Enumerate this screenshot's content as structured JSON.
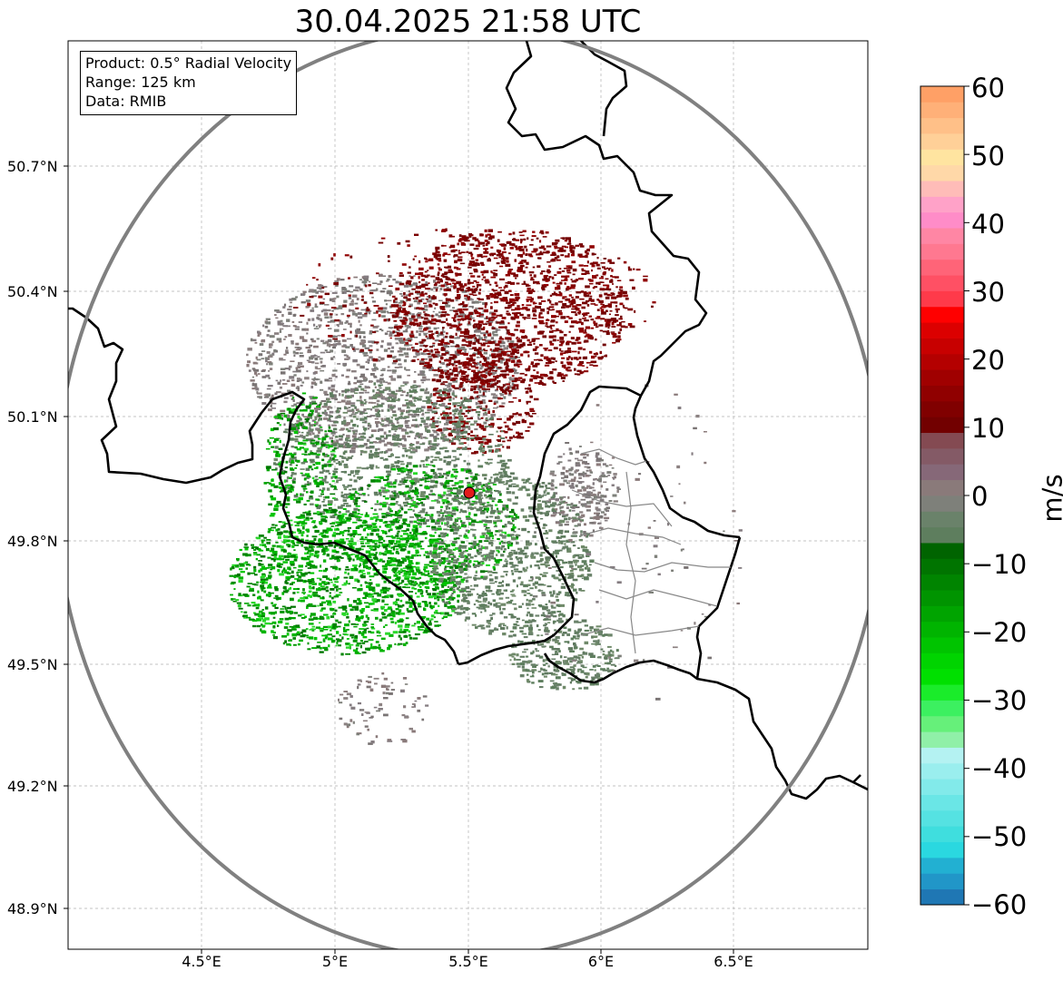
{
  "title": "30.04.2025 21:58 UTC",
  "info_box": {
    "product": "Product: 0.5° Radial Velocity",
    "range": "Range: 125 km",
    "data": "Data: RMIB"
  },
  "map": {
    "lat_labels": [
      "50.7°N",
      "50.4°N",
      "50.1°N",
      "49.8°N",
      "49.5°N",
      "49.2°N",
      "48.9°N"
    ],
    "lon_labels": [
      "4.5°E",
      "5°E",
      "5.5°E",
      "6°E",
      "6.5°E"
    ],
    "radar_site_color": "#e31a1c",
    "range_ring_color": "#808080",
    "border_color": "#000000"
  },
  "colorbar": {
    "unit": "m/s",
    "min": -60,
    "max": 60,
    "tick_labels": [
      "60",
      "50",
      "40",
      "30",
      "20",
      "10",
      "0",
      "−10",
      "−20",
      "−30",
      "−40",
      "−50",
      "−60"
    ],
    "colors_bottom_to_top": [
      "#1f77b4",
      "#2196c8",
      "#22b0d2",
      "#2ad8e0",
      "#3fdede",
      "#55e2e2",
      "#6ae6e6",
      "#82eaea",
      "#9aeeee",
      "#b4f2f2",
      "#90f0a8",
      "#66f07a",
      "#3cf060",
      "#1aec2a",
      "#00e000",
      "#00d400",
      "#00c400",
      "#00b400",
      "#00a400",
      "#009400",
      "#008400",
      "#007400",
      "#006400",
      "#5e7e5e",
      "#6a826a",
      "#7e807a",
      "#8a7a7a",
      "#866878",
      "#845a66",
      "#844a52",
      "#720000",
      "#800000",
      "#900000",
      "#a00000",
      "#b40000",
      "#c80000",
      "#dc0000",
      "#ff0000",
      "#ff3a4a",
      "#ff5064",
      "#ff6478",
      "#ff7890",
      "#ff86a4",
      "#ff8cc8",
      "#ffa2c8",
      "#ffbcb8",
      "#ffd8a8",
      "#ffe4a0",
      "#ffd098",
      "#ffc088",
      "#ffb078",
      "#ffa066"
    ]
  }
}
